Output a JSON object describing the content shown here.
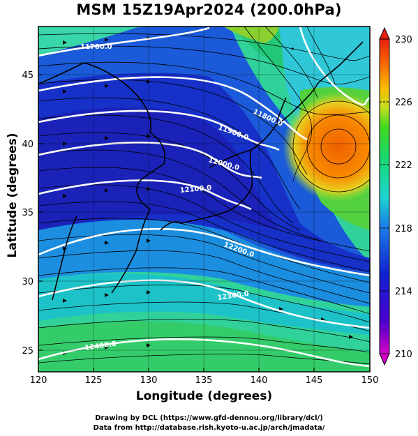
{
  "title": "MSM 15Z19Apr2024 (200.0hPa)",
  "map": {
    "xlabel": "Longitude (degrees)",
    "ylabel": "Latitude  (degrees)",
    "x_ticks": [
      120,
      125,
      130,
      135,
      140,
      145,
      150
    ],
    "y_ticks": [
      25,
      30,
      35,
      40,
      45
    ],
    "xlim": [
      120,
      150
    ],
    "ylim": [
      22.5,
      47.5
    ],
    "contour_labels": [
      "11700.0",
      "11800.0",
      "11900.0",
      "12000.0",
      "12100.0",
      "12200.0",
      "12300.0",
      "12400.0"
    ]
  },
  "colorbar": {
    "tick_labels": [
      "230",
      "226",
      "222",
      "218",
      "214",
      "210"
    ],
    "range": [
      210,
      230
    ]
  },
  "credits": {
    "line1": "Drawing by DCL (https://www.gfd-dennou.org/library/dcl/)",
    "line2": "Data from http://database.rish.kyoto-u.ac.jp/arch/jmadata/"
  }
}
